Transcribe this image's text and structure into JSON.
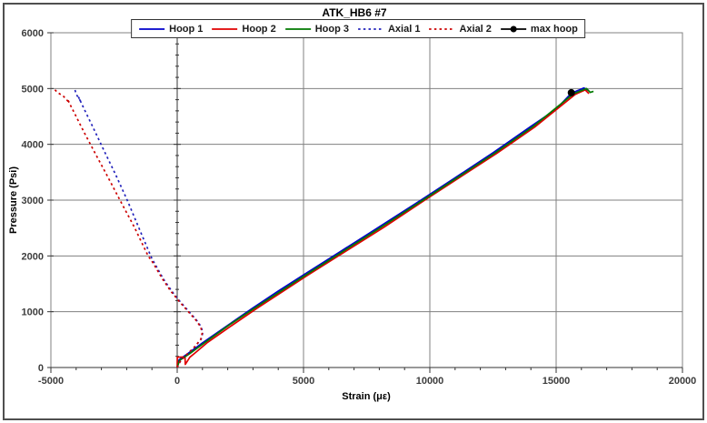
{
  "window_title": "ATK_HB6 #7",
  "colors": {
    "hoop1": "#0000cc",
    "hoop2": "#e00000",
    "hoop3": "#007a00",
    "axial1": "#2222bb",
    "axial2": "#cc0000",
    "max_hoop": "#000000",
    "grid": "#808080",
    "axis": "#333333",
    "tick_label": "#3d3d3d"
  },
  "chart_data": {
    "type": "line",
    "title": "ATK_HB6 #7",
    "xlabel": "Strain (με)",
    "ylabel": "Pressure (Psi)",
    "xlim": [
      -5000,
      20000
    ],
    "ylim": [
      0,
      6000
    ],
    "x_major_ticks": [
      -5000,
      0,
      5000,
      10000,
      15000,
      20000
    ],
    "x_minor_step": 1000,
    "y_major_ticks": [
      0,
      1000,
      2000,
      3000,
      4000,
      5000,
      6000
    ],
    "y_minor_step": 200,
    "grid": "major-both",
    "legend_position": "top-center",
    "series": [
      {
        "name": "Hoop 1",
        "color": "#0000cc",
        "style": "solid",
        "points": [
          [
            0,
            0
          ],
          [
            30,
            60
          ],
          [
            60,
            130
          ],
          [
            150,
            165
          ],
          [
            420,
            250
          ],
          [
            1000,
            440
          ],
          [
            2000,
            755
          ],
          [
            3000,
            1070
          ],
          [
            4000,
            1370
          ],
          [
            5000,
            1660
          ],
          [
            6500,
            2090
          ],
          [
            8000,
            2520
          ],
          [
            9650,
            3000
          ],
          [
            11000,
            3400
          ],
          [
            12500,
            3850
          ],
          [
            14000,
            4320
          ],
          [
            15000,
            4630
          ],
          [
            15600,
            4915
          ],
          [
            16100,
            5010
          ],
          [
            16300,
            4960
          ]
        ]
      },
      {
        "name": "Hoop 2",
        "color": "#e00000",
        "style": "solid",
        "points": [
          [
            0,
            5
          ],
          [
            5,
            185
          ],
          [
            310,
            190
          ],
          [
            320,
            55
          ],
          [
            500,
            185
          ],
          [
            700,
            260
          ],
          [
            1200,
            450
          ],
          [
            2150,
            750
          ],
          [
            3150,
            1060
          ],
          [
            5150,
            1650
          ],
          [
            8150,
            2505
          ],
          [
            9800,
            3000
          ],
          [
            12650,
            3840
          ],
          [
            14150,
            4310
          ],
          [
            15750,
            4895
          ],
          [
            16150,
            4975
          ],
          [
            16300,
            4910
          ]
        ]
      },
      {
        "name": "Hoop 3",
        "color": "#007a00",
        "style": "solid",
        "points": [
          [
            0,
            0
          ],
          [
            40,
            55
          ],
          [
            90,
            125
          ],
          [
            200,
            160
          ],
          [
            500,
            250
          ],
          [
            1100,
            450
          ],
          [
            2050,
            760
          ],
          [
            3080,
            1070
          ],
          [
            5080,
            1655
          ],
          [
            8080,
            2515
          ],
          [
            9730,
            3000
          ],
          [
            12580,
            3845
          ],
          [
            14080,
            4315
          ],
          [
            15680,
            4905
          ],
          [
            16200,
            5000
          ],
          [
            16350,
            4930
          ],
          [
            16480,
            4950
          ]
        ]
      },
      {
        "name": "Axial 1",
        "color": "#2222bb",
        "style": "dotted",
        "points": [
          [
            0,
            0
          ],
          [
            60,
            60
          ],
          [
            150,
            130
          ],
          [
            400,
            240
          ],
          [
            700,
            370
          ],
          [
            950,
            510
          ],
          [
            1010,
            620
          ],
          [
            950,
            730
          ],
          [
            750,
            860
          ],
          [
            450,
            1010
          ],
          [
            100,
            1190
          ],
          [
            -200,
            1360
          ],
          [
            -550,
            1590
          ],
          [
            -850,
            1830
          ],
          [
            -1000,
            1950
          ],
          [
            -1450,
            2430
          ],
          [
            -1980,
            3000
          ],
          [
            -2450,
            3470
          ],
          [
            -2900,
            3890
          ],
          [
            -3350,
            4320
          ],
          [
            -3700,
            4650
          ],
          [
            -3900,
            4840
          ],
          [
            -3820,
            4770
          ],
          [
            -4000,
            4900
          ],
          [
            -4060,
            5000
          ]
        ]
      },
      {
        "name": "Axial 2",
        "color": "#cc0000",
        "style": "dotted",
        "points": [
          [
            0,
            0
          ],
          [
            50,
            55
          ],
          [
            140,
            125
          ],
          [
            380,
            235
          ],
          [
            680,
            365
          ],
          [
            930,
            505
          ],
          [
            990,
            615
          ],
          [
            930,
            725
          ],
          [
            730,
            855
          ],
          [
            430,
            1005
          ],
          [
            80,
            1185
          ],
          [
            -250,
            1365
          ],
          [
            -600,
            1600
          ],
          [
            -950,
            1870
          ],
          [
            -1150,
            2000
          ],
          [
            -1700,
            2520
          ],
          [
            -2265,
            3000
          ],
          [
            -2750,
            3420
          ],
          [
            -3250,
            3840
          ],
          [
            -3700,
            4230
          ],
          [
            -4100,
            4590
          ],
          [
            -4350,
            4810
          ],
          [
            -4260,
            4740
          ],
          [
            -4500,
            4860
          ],
          [
            -4740,
            4930
          ],
          [
            -4890,
            5000
          ]
        ]
      },
      {
        "name": "max hoop",
        "color": "#000000",
        "style": "marker",
        "points": [
          [
            15600,
            4925
          ]
        ]
      }
    ]
  }
}
